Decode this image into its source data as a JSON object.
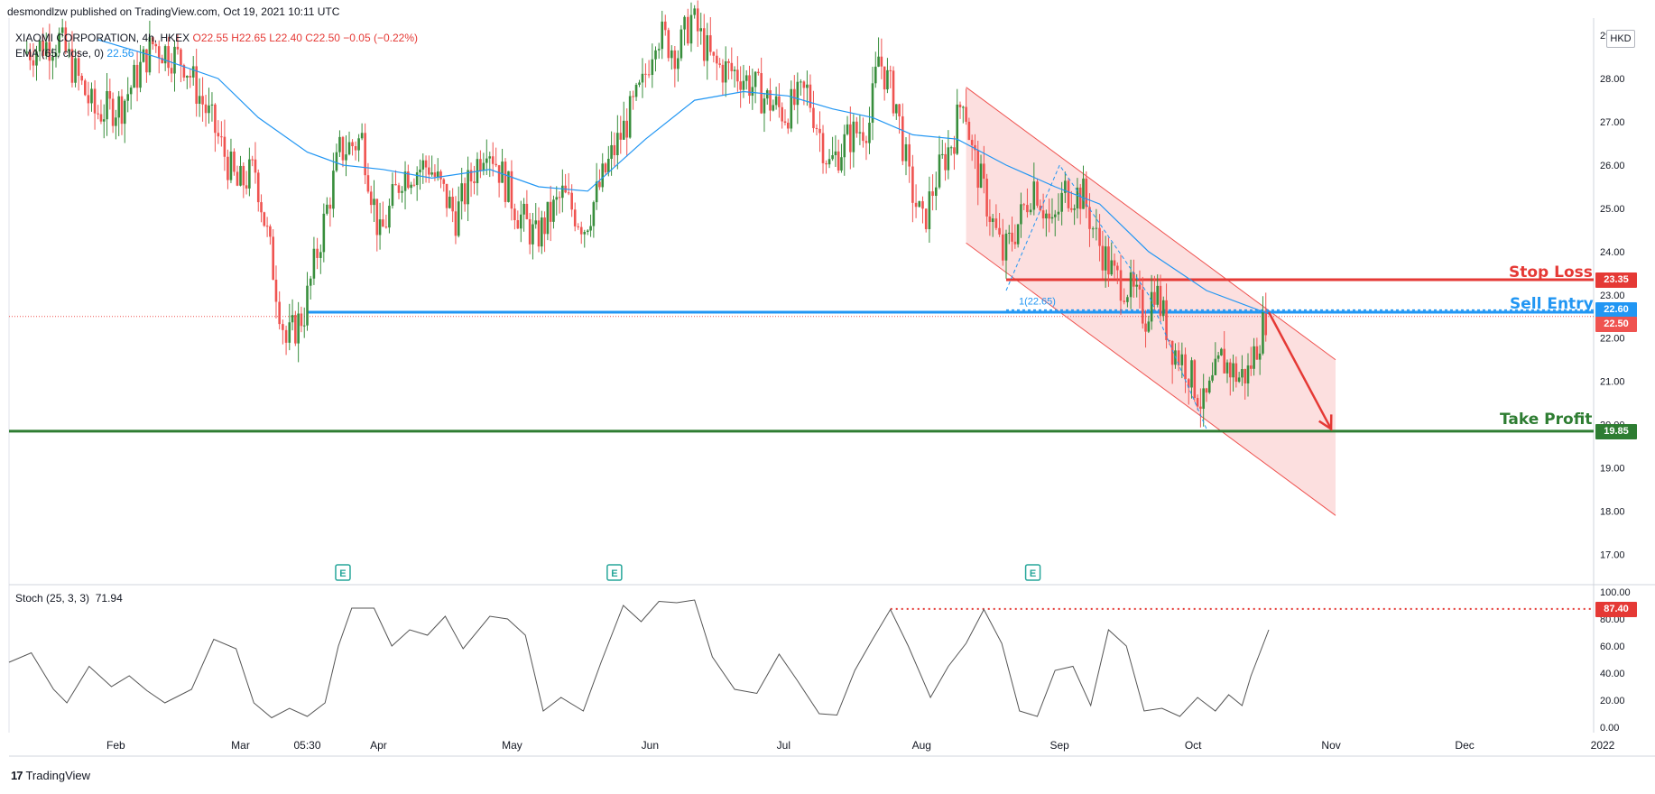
{
  "header": {
    "published": "desmondlzw published on TradingView.com, Oct 19, 2021 10:11 UTC"
  },
  "legend": {
    "symbol": "XIAOMI CORPORATION, 4h, HKEX",
    "ohlc": "O22.55  H22.65  L22.40  C22.50  −0.05 (−0.22%)",
    "ema_label": "EMA (65, close, 0)",
    "ema_value": "22.56"
  },
  "currency": "HKD",
  "price_tags": {
    "stop_loss": "23.35",
    "sell_entry": "22.60",
    "last": "22.50",
    "take_profit": "19.85",
    "stoch_level": "87.40"
  },
  "annotations": {
    "stop_loss": "Stop Loss",
    "sell_entry": "Sell Entry",
    "take_profit": "Take Profit",
    "fib_label": "1(22.65)"
  },
  "stoch_legend": {
    "label": "Stoch (25, 3, 3)",
    "value": "71.94"
  },
  "footer": {
    "logo": "17",
    "brand": "TradingView"
  },
  "colors": {
    "up": "#26a69a",
    "up_candle": "#388e3c",
    "down": "#ef5350",
    "ema": "#2196f3",
    "stop_loss": "#e53935",
    "sell_entry": "#2196f3",
    "take_profit": "#2e7d32",
    "channel_fill": "#fcd9d9"
  },
  "chart_data": [
    {
      "type": "candlestick",
      "title": "XIAOMI CORPORATION, 4h, HKEX",
      "y_ticks": [
        "29.00",
        "28.00",
        "27.00",
        "26.00",
        "25.00",
        "24.00",
        "23.00",
        "22.00",
        "21.00",
        "20.00",
        "19.00",
        "18.00",
        "17.00"
      ],
      "x_ticks": [
        "Feb",
        "Mar",
        "05:30",
        "Apr",
        "May",
        "Jun",
        "Jul",
        "Aug",
        "Sep",
        "Oct",
        "Nov",
        "Dec",
        "2022"
      ],
      "ylim": [
        16.3,
        29.4
      ],
      "close_path": [
        {
          "date": "2021-01-12",
          "close": 28.6
        },
        {
          "date": "2021-01-20",
          "close": 28.9
        },
        {
          "date": "2021-01-28",
          "close": 27.2
        },
        {
          "date": "2021-02-03",
          "close": 27.4
        },
        {
          "date": "2021-02-10",
          "close": 28.8
        },
        {
          "date": "2021-02-17",
          "close": 28.4
        },
        {
          "date": "2021-02-24",
          "close": 26.8
        },
        {
          "date": "2021-03-01",
          "close": 25.5
        },
        {
          "date": "2021-03-05",
          "close": 25.9
        },
        {
          "date": "2021-03-09",
          "close": 23.6
        },
        {
          "date": "2021-03-12",
          "close": 21.9
        },
        {
          "date": "2021-03-16",
          "close": 22.6
        },
        {
          "date": "2021-03-19",
          "close": 24.0
        },
        {
          "date": "2021-03-24",
          "close": 26.3
        },
        {
          "date": "2021-03-29",
          "close": 26.6
        },
        {
          "date": "2021-04-02",
          "close": 24.3
        },
        {
          "date": "2021-04-07",
          "close": 25.8
        },
        {
          "date": "2021-04-13",
          "close": 26.0
        },
        {
          "date": "2021-04-19",
          "close": 24.8
        },
        {
          "date": "2021-04-26",
          "close": 26.6
        },
        {
          "date": "2021-05-03",
          "close": 24.9
        },
        {
          "date": "2021-05-07",
          "close": 24.3
        },
        {
          "date": "2021-05-13",
          "close": 25.3
        },
        {
          "date": "2021-05-18",
          "close": 24.6
        },
        {
          "date": "2021-05-24",
          "close": 26.2
        },
        {
          "date": "2021-05-31",
          "close": 27.8
        },
        {
          "date": "2021-06-03",
          "close": 29.1
        },
        {
          "date": "2021-06-08",
          "close": 28.6
        },
        {
          "date": "2021-06-11",
          "close": 29.4
        },
        {
          "date": "2021-06-16",
          "close": 28.3
        },
        {
          "date": "2021-06-22",
          "close": 28.1
        },
        {
          "date": "2021-06-28",
          "close": 27.5
        },
        {
          "date": "2021-07-02",
          "close": 27.2
        },
        {
          "date": "2021-07-07",
          "close": 27.7
        },
        {
          "date": "2021-07-12",
          "close": 26.0
        },
        {
          "date": "2021-07-16",
          "close": 26.6
        },
        {
          "date": "2021-07-21",
          "close": 27.0
        },
        {
          "date": "2021-07-23",
          "close": 28.5
        },
        {
          "date": "2021-07-27",
          "close": 27.4
        },
        {
          "date": "2021-07-30",
          "close": 25.6
        },
        {
          "date": "2021-08-02",
          "close": 24.6
        },
        {
          "date": "2021-08-05",
          "close": 25.7
        },
        {
          "date": "2021-08-09",
          "close": 26.7
        },
        {
          "date": "2021-08-11",
          "close": 27.7
        },
        {
          "date": "2021-08-13",
          "close": 26.3
        },
        {
          "date": "2021-08-17",
          "close": 24.9
        },
        {
          "date": "2021-08-20",
          "close": 23.9
        },
        {
          "date": "2021-08-24",
          "close": 24.8
        },
        {
          "date": "2021-08-27",
          "close": 25.6
        },
        {
          "date": "2021-08-31",
          "close": 24.5
        },
        {
          "date": "2021-09-03",
          "close": 25.4
        },
        {
          "date": "2021-09-07",
          "close": 25.3
        },
        {
          "date": "2021-09-10",
          "close": 24.3
        },
        {
          "date": "2021-09-14",
          "close": 23.4
        },
        {
          "date": "2021-09-17",
          "close": 23.2
        },
        {
          "date": "2021-09-21",
          "close": 22.5
        },
        {
          "date": "2021-09-23",
          "close": 23.2
        },
        {
          "date": "2021-09-27",
          "close": 21.8
        },
        {
          "date": "2021-09-30",
          "close": 21.4
        },
        {
          "date": "2021-10-04",
          "close": 20.4
        },
        {
          "date": "2021-10-06",
          "close": 20.9
        },
        {
          "date": "2021-10-08",
          "close": 21.5
        },
        {
          "date": "2021-10-12",
          "close": 21.1
        },
        {
          "date": "2021-10-14",
          "close": 21.2
        },
        {
          "date": "2021-10-18",
          "close": 22.5
        }
      ],
      "ema_65": [
        {
          "date": "2021-01-28",
          "value": 28.9
        },
        {
          "date": "2021-02-10",
          "value": 28.5
        },
        {
          "date": "2021-02-24",
          "value": 28.0
        },
        {
          "date": "2021-03-05",
          "value": 27.1
        },
        {
          "date": "2021-03-16",
          "value": 26.3
        },
        {
          "date": "2021-03-24",
          "value": 26.0
        },
        {
          "date": "2021-04-02",
          "value": 25.9
        },
        {
          "date": "2021-04-13",
          "value": 25.7
        },
        {
          "date": "2021-04-26",
          "value": 25.9
        },
        {
          "date": "2021-05-07",
          "value": 25.5
        },
        {
          "date": "2021-05-18",
          "value": 25.4
        },
        {
          "date": "2021-05-31",
          "value": 26.6
        },
        {
          "date": "2021-06-11",
          "value": 27.5
        },
        {
          "date": "2021-06-22",
          "value": 27.7
        },
        {
          "date": "2021-07-02",
          "value": 27.6
        },
        {
          "date": "2021-07-12",
          "value": 27.3
        },
        {
          "date": "2021-07-21",
          "value": 27.1
        },
        {
          "date": "2021-07-30",
          "value": 26.7
        },
        {
          "date": "2021-08-09",
          "value": 26.6
        },
        {
          "date": "2021-08-20",
          "value": 26.0
        },
        {
          "date": "2021-08-31",
          "value": 25.5
        },
        {
          "date": "2021-09-10",
          "value": 25.1
        },
        {
          "date": "2021-09-21",
          "value": 24.0
        },
        {
          "date": "2021-10-04",
          "value": 23.1
        },
        {
          "date": "2021-10-18",
          "value": 22.56
        }
      ],
      "horizontal_levels": [
        {
          "name": "Stop Loss",
          "value": 23.35,
          "from": "2021-08-20"
        },
        {
          "name": "Sell Entry",
          "value": 22.6,
          "from": "2021-03-16"
        },
        {
          "name": "Take Profit",
          "value": 19.85,
          "from": "2021-01-08"
        }
      ],
      "last_price": 22.5,
      "channel": {
        "upper": [
          {
            "date": "2021-08-11",
            "value": 27.8
          },
          {
            "date": "2021-11-02",
            "value": 21.5
          }
        ],
        "lower": [
          {
            "date": "2021-08-11",
            "value": 24.2
          },
          {
            "date": "2021-11-02",
            "value": 17.9
          }
        ]
      },
      "arrow": {
        "from": {
          "date": "2021-10-18",
          "value": 22.6
        },
        "to": {
          "date": "2021-11-01",
          "value": 19.9
        }
      },
      "earnings_markers": [
        "2021-03-24",
        "2021-05-24",
        "2021-08-26"
      ]
    },
    {
      "type": "line",
      "title": "Stoch (25, 3, 3)",
      "y_ticks": [
        "100.00",
        "80.00",
        "60.00",
        "40.00",
        "20.00",
        "0.00"
      ],
      "ylim": [
        -4,
        104
      ],
      "level": 87.4,
      "values": [
        {
          "date": "2021-01-08",
          "value": 48
        },
        {
          "date": "2021-01-13",
          "value": 55
        },
        {
          "date": "2021-01-18",
          "value": 28
        },
        {
          "date": "2021-01-21",
          "value": 18
        },
        {
          "date": "2021-01-26",
          "value": 45
        },
        {
          "date": "2021-01-31",
          "value": 30
        },
        {
          "date": "2021-02-04",
          "value": 38
        },
        {
          "date": "2021-02-08",
          "value": 27
        },
        {
          "date": "2021-02-12",
          "value": 18
        },
        {
          "date": "2021-02-18",
          "value": 28
        },
        {
          "date": "2021-02-23",
          "value": 65
        },
        {
          "date": "2021-02-28",
          "value": 58
        },
        {
          "date": "2021-03-04",
          "value": 18
        },
        {
          "date": "2021-03-08",
          "value": 7
        },
        {
          "date": "2021-03-12",
          "value": 14
        },
        {
          "date": "2021-03-16",
          "value": 8
        },
        {
          "date": "2021-03-20",
          "value": 18
        },
        {
          "date": "2021-03-23",
          "value": 60
        },
        {
          "date": "2021-03-26",
          "value": 88
        },
        {
          "date": "2021-03-31",
          "value": 88
        },
        {
          "date": "2021-04-04",
          "value": 60
        },
        {
          "date": "2021-04-08",
          "value": 72
        },
        {
          "date": "2021-04-12",
          "value": 68
        },
        {
          "date": "2021-04-16",
          "value": 82
        },
        {
          "date": "2021-04-20",
          "value": 58
        },
        {
          "date": "2021-04-26",
          "value": 82
        },
        {
          "date": "2021-04-30",
          "value": 80
        },
        {
          "date": "2021-05-04",
          "value": 68
        },
        {
          "date": "2021-05-08",
          "value": 12
        },
        {
          "date": "2021-05-12",
          "value": 22
        },
        {
          "date": "2021-05-17",
          "value": 12
        },
        {
          "date": "2021-05-21",
          "value": 48
        },
        {
          "date": "2021-05-26",
          "value": 90
        },
        {
          "date": "2021-05-30",
          "value": 78
        },
        {
          "date": "2021-06-03",
          "value": 93
        },
        {
          "date": "2021-06-07",
          "value": 92
        },
        {
          "date": "2021-06-11",
          "value": 94
        },
        {
          "date": "2021-06-15",
          "value": 52
        },
        {
          "date": "2021-06-20",
          "value": 28
        },
        {
          "date": "2021-06-25",
          "value": 25
        },
        {
          "date": "2021-06-30",
          "value": 54
        },
        {
          "date": "2021-07-04",
          "value": 35
        },
        {
          "date": "2021-07-09",
          "value": 10
        },
        {
          "date": "2021-07-13",
          "value": 9
        },
        {
          "date": "2021-07-17",
          "value": 42
        },
        {
          "date": "2021-07-21",
          "value": 65
        },
        {
          "date": "2021-07-25",
          "value": 87
        },
        {
          "date": "2021-07-29",
          "value": 60
        },
        {
          "date": "2021-08-03",
          "value": 22
        },
        {
          "date": "2021-08-07",
          "value": 45
        },
        {
          "date": "2021-08-11",
          "value": 62
        },
        {
          "date": "2021-08-15",
          "value": 87
        },
        {
          "date": "2021-08-19",
          "value": 62
        },
        {
          "date": "2021-08-23",
          "value": 12
        },
        {
          "date": "2021-08-27",
          "value": 8
        },
        {
          "date": "2021-08-31",
          "value": 42
        },
        {
          "date": "2021-09-04",
          "value": 45
        },
        {
          "date": "2021-09-08",
          "value": 16
        },
        {
          "date": "2021-09-12",
          "value": 72
        },
        {
          "date": "2021-09-16",
          "value": 60
        },
        {
          "date": "2021-09-20",
          "value": 12
        },
        {
          "date": "2021-09-24",
          "value": 14
        },
        {
          "date": "2021-09-28",
          "value": 8
        },
        {
          "date": "2021-10-02",
          "value": 22
        },
        {
          "date": "2021-10-06",
          "value": 12
        },
        {
          "date": "2021-10-09",
          "value": 24
        },
        {
          "date": "2021-10-12",
          "value": 16
        },
        {
          "date": "2021-10-14",
          "value": 38
        },
        {
          "date": "2021-10-16",
          "value": 55
        },
        {
          "date": "2021-10-18",
          "value": 72
        }
      ]
    }
  ]
}
